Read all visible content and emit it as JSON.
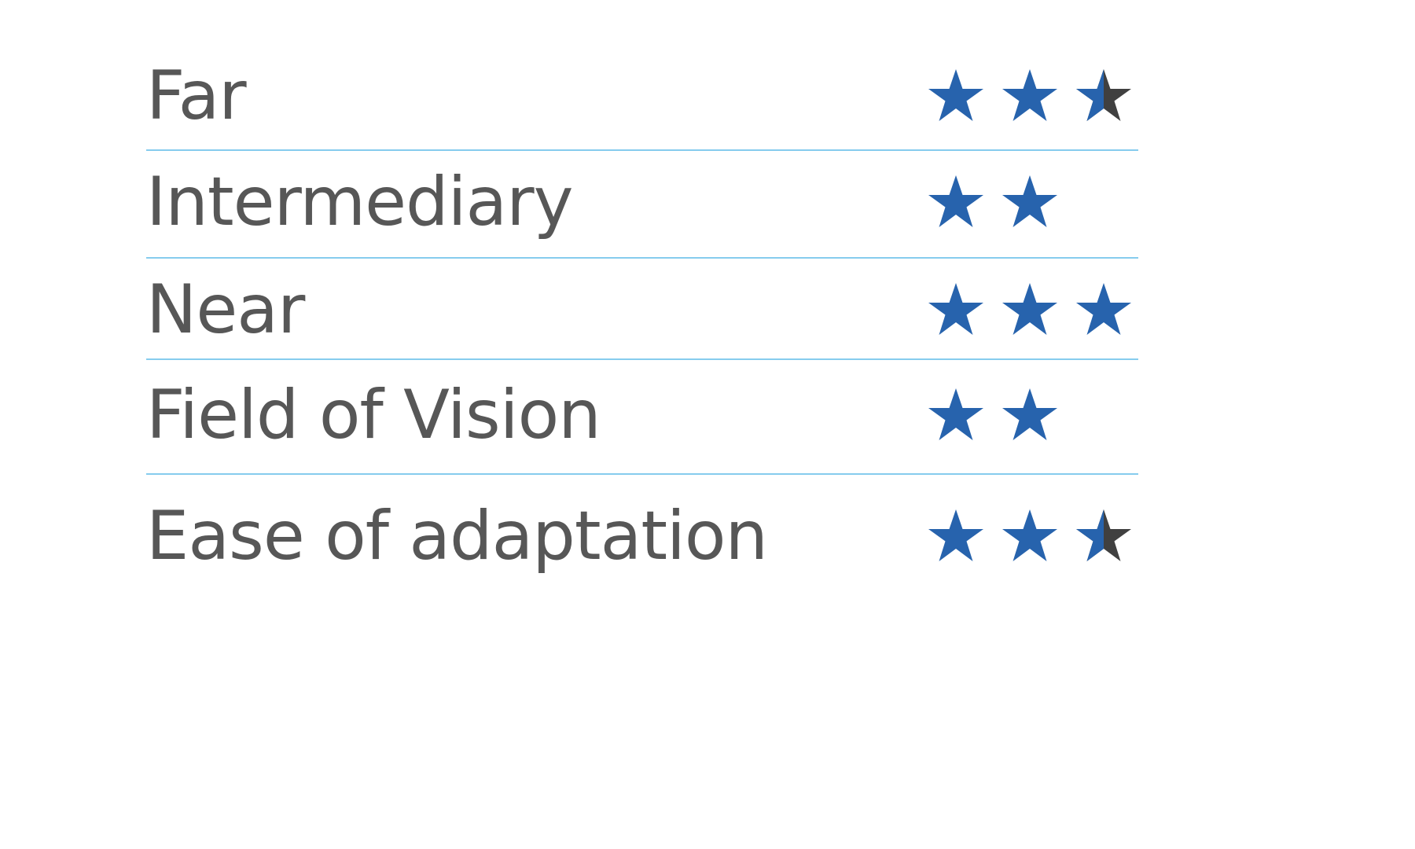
{
  "colors": {
    "star_fill": "#2763ad",
    "star_half": "#404040",
    "divider": "#86ccee",
    "text": "#575757"
  },
  "max_stars": 3,
  "rows": [
    {
      "label": "Far",
      "rating": 2.5
    },
    {
      "label": "Intermediary",
      "rating": 2
    },
    {
      "label": "Near",
      "rating": 3
    },
    {
      "label": "Field of Vision",
      "rating": 2
    },
    {
      "label": "Ease of adaptation",
      "rating": 2.5
    }
  ]
}
